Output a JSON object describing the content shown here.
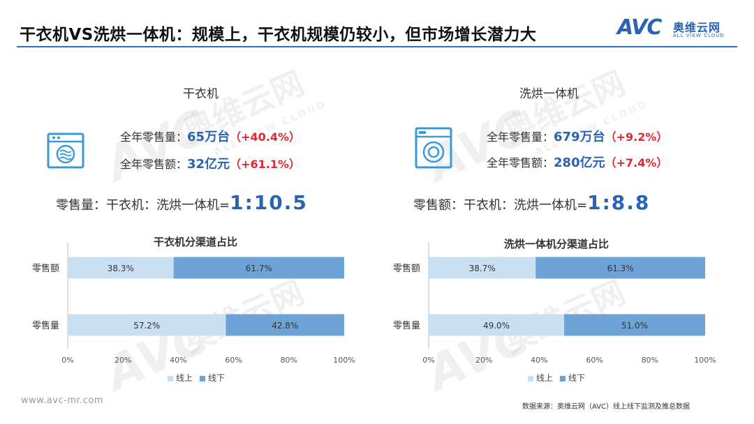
{
  "header": {
    "title": "干衣机VS洗烘一体机：规模上，干衣机规模仍较小，但市场增长潜力大",
    "logo_mark": "AVC",
    "logo_cn": "奥维云网",
    "logo_en": "ALL VIEW CLOUD"
  },
  "colors": {
    "accent_blue": "#2a63b4",
    "change_red": "#e0282e",
    "online_bar": "#c9dff2",
    "offline_bar": "#6ea3d8"
  },
  "left": {
    "title": "干衣机",
    "icon": "dryer-icon",
    "volume_label": "全年零售量：",
    "volume_value": "65万台",
    "volume_change": "（+40.4%）",
    "sales_label": "全年零售额：",
    "sales_value": "32亿元",
    "sales_change": "（+61.1%）"
  },
  "right": {
    "title": "洗烘一体机",
    "icon": "washer-dryer-icon",
    "volume_label": "全年零售量：",
    "volume_value": "679万台",
    "volume_change": "（+9.2%）",
    "sales_label": "全年零售额：",
    "sales_value": "280亿元",
    "sales_change": "（+7.4%）"
  },
  "ratios": {
    "volume_label": "零售量：干衣机：洗烘一体机=",
    "volume_value": "1:10.5",
    "sales_label": "零售额：干衣机：洗烘一体机=",
    "sales_value": "1:8.8"
  },
  "chart_data": [
    {
      "type": "bar",
      "stacked": true,
      "orientation": "horizontal",
      "title": "干衣机分渠道占比",
      "categories": [
        "零售额",
        "零售量"
      ],
      "series": [
        {
          "name": "线上",
          "values": [
            38.3,
            57.2
          ],
          "labels": [
            "38.3%",
            "57.2%"
          ]
        },
        {
          "name": "线下",
          "values": [
            61.7,
            42.8
          ],
          "labels": [
            "61.7%",
            "42.8%"
          ]
        }
      ],
      "xlim": [
        0,
        100
      ],
      "xticks": [
        "0%",
        "20%",
        "40%",
        "60%",
        "80%",
        "100%"
      ],
      "legend": "bottom",
      "grid": false
    },
    {
      "type": "bar",
      "stacked": true,
      "orientation": "horizontal",
      "title": "洗烘一体机分渠道占比",
      "categories": [
        "零售额",
        "零售量"
      ],
      "series": [
        {
          "name": "线上",
          "values": [
            38.7,
            49.0
          ],
          "labels": [
            "38.7%",
            "49.0%"
          ]
        },
        {
          "name": "线下",
          "values": [
            61.3,
            51.0
          ],
          "labels": [
            "61.3%",
            "51.0%"
          ]
        }
      ],
      "xlim": [
        0,
        100
      ],
      "xticks": [
        "0%",
        "20%",
        "40%",
        "60%",
        "80%",
        "100%"
      ],
      "legend": "bottom",
      "grid": false
    }
  ],
  "footer": {
    "website": "www.avc-mr.com",
    "source": "数据来源：奥维云网（AVC）线上线下监测及推总数据"
  }
}
